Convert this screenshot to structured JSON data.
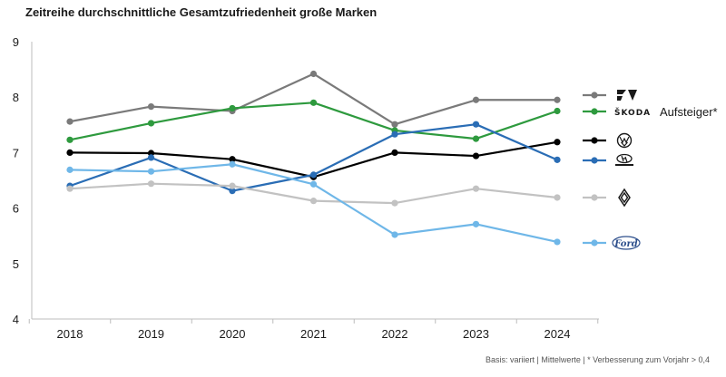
{
  "title": "Zeitreihe durchschnittliche Gesamtzufriedenheit große Marken",
  "footnote": "Basis: variiert | Mittelwerte | * Verbesserung zum Vorjahr > 0,4",
  "chart_data": {
    "type": "line",
    "title": "Zeitreihe durchschnittliche Gesamtzufriedenheit große Marken",
    "xlabel": "",
    "ylabel": "",
    "x": [
      "2018",
      "2019",
      "2020",
      "2021",
      "2022",
      "2023",
      "2024"
    ],
    "ylim": [
      4,
      9
    ],
    "yticks": [
      4,
      5,
      6,
      7,
      8,
      9
    ],
    "grid": false,
    "legend": "right",
    "series": [
      {
        "name": "CUPRA",
        "logo": "cupra-logo",
        "color": "#7a7a7a",
        "values": [
          7.56,
          7.83,
          7.75,
          8.42,
          7.51,
          7.95,
          7.95
        ],
        "annotation": ""
      },
      {
        "name": "ŠKODA",
        "logo": "skoda-logo",
        "color": "#2e9a3e",
        "values": [
          7.23,
          7.53,
          7.8,
          7.9,
          7.4,
          7.25,
          7.75
        ],
        "annotation": "Aufsteiger*"
      },
      {
        "name": "Volkswagen",
        "logo": "vw-logo",
        "color": "#000000",
        "values": [
          7.0,
          6.99,
          6.88,
          6.56,
          7.0,
          6.94,
          7.19
        ],
        "annotation": ""
      },
      {
        "name": "Hyundai",
        "logo": "hyundai-logo",
        "color": "#2a6db5",
        "values": [
          6.4,
          6.91,
          6.31,
          6.6,
          7.33,
          7.51,
          6.87
        ],
        "annotation": ""
      },
      {
        "name": "Renault",
        "logo": "renault-logo",
        "color": "#c2c2c2",
        "values": [
          6.35,
          6.44,
          6.4,
          6.13,
          6.09,
          6.35,
          6.19
        ],
        "annotation": ""
      },
      {
        "name": "Ford",
        "logo": "ford-logo",
        "color": "#6fb7e8",
        "values": [
          6.69,
          6.66,
          6.79,
          6.43,
          5.52,
          5.71,
          5.39
        ],
        "annotation": ""
      }
    ]
  }
}
